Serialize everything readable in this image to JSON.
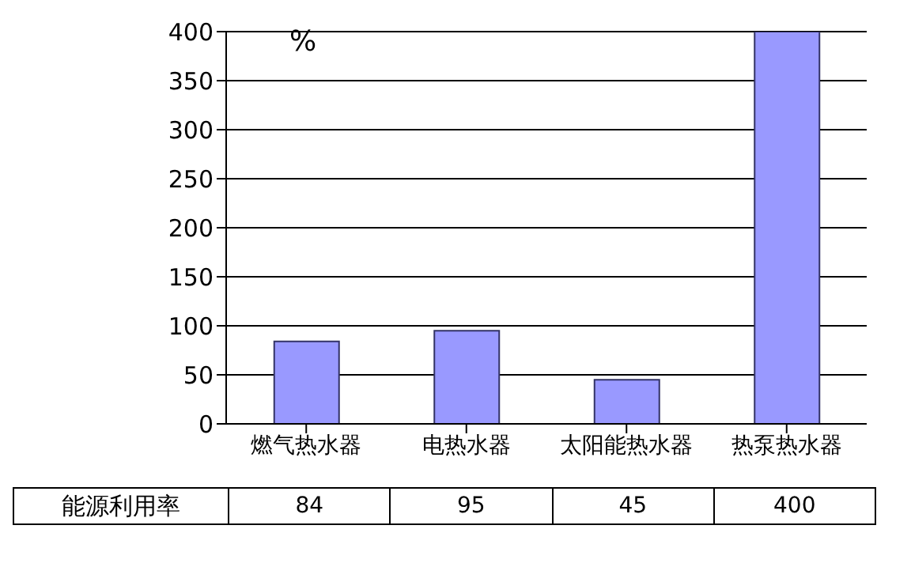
{
  "chart_data": {
    "type": "bar",
    "ylabel": "%",
    "categories": [
      "燃气热水器",
      "电热水器",
      "太阳能热水器",
      "热泵热水器"
    ],
    "series": [
      {
        "name": "能源利用率",
        "color": "#9999ff",
        "values": [
          84,
          95,
          45,
          400
        ]
      }
    ],
    "ylim": [
      0,
      400
    ],
    "yticks": [
      0,
      50,
      100,
      150,
      200,
      250,
      300,
      350,
      400
    ],
    "grid": "y",
    "data_labels": true
  }
}
